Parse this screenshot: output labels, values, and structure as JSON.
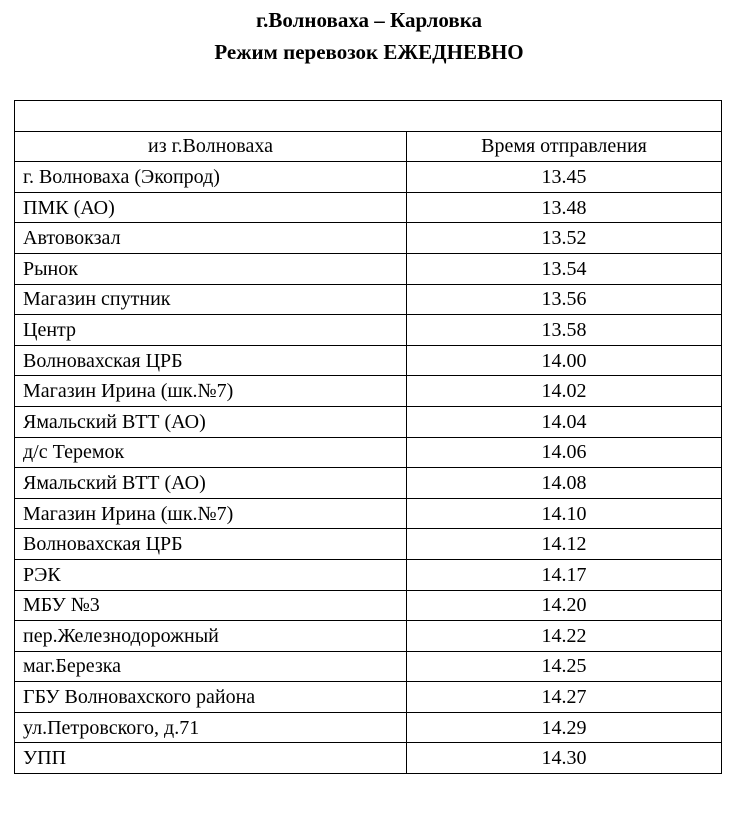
{
  "header": {
    "title": "г.Волноваха – Карловка",
    "subtitle": "Режим перевозок ЕЖЕДНЕВНО"
  },
  "table": {
    "columns": [
      "из г.Волноваха",
      "Время отправления"
    ],
    "rows": [
      [
        "г. Волноваха (Экопрод)",
        "13.45"
      ],
      [
        "ПМК (АО)",
        "13.48"
      ],
      [
        "Автовокзал",
        "13.52"
      ],
      [
        "Рынок",
        "13.54"
      ],
      [
        "Магазин спутник",
        "13.56"
      ],
      [
        "Центр",
        "13.58"
      ],
      [
        "Волновахская ЦРБ",
        "14.00"
      ],
      [
        "Магазин Ирина (шк.№7)",
        "14.02"
      ],
      [
        "Ямальский ВТТ (АО)",
        "14.04"
      ],
      [
        "д/с Теремок",
        "14.06"
      ],
      [
        "Ямальский ВТТ (АО)",
        "14.08"
      ],
      [
        "Магазин Ирина (шк.№7)",
        "14.10"
      ],
      [
        "Волновахская ЦРБ",
        "14.12"
      ],
      [
        "РЭК",
        "14.17"
      ],
      [
        "МБУ №3",
        "14.20"
      ],
      [
        "пер.Железнодорожный",
        "14.22"
      ],
      [
        "маг.Березка",
        "14.25"
      ],
      [
        "ГБУ Волновахского района",
        "14.27"
      ],
      [
        "ул.Петровского, д.71",
        "14.29"
      ],
      [
        "УПП",
        "14.30"
      ]
    ]
  }
}
